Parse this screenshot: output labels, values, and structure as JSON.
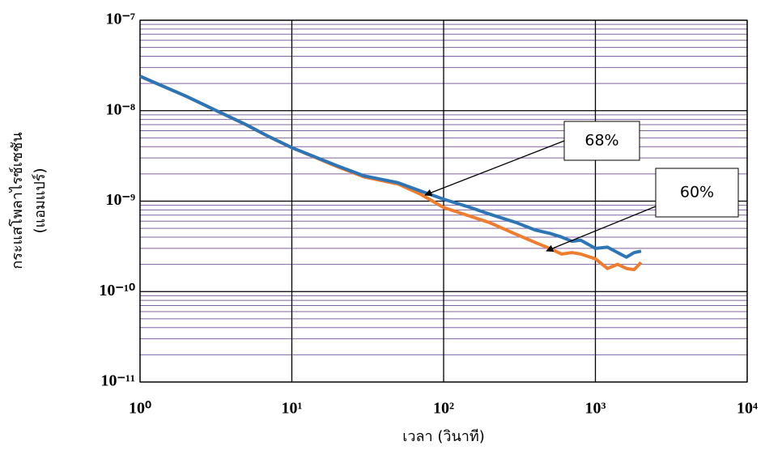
{
  "chart_data": {
    "type": "line",
    "x_label": "เวลา (วินาที)",
    "y_label": [
      "กระแสโพลาไรซ์เซชัน",
      "(แอมแปร์)"
    ],
    "xscale": "log",
    "yscale": "log",
    "grid": true,
    "xlim": [
      1,
      10000
    ],
    "ylim": [
      1e-11,
      1e-07
    ],
    "xticks": [
      {
        "value": 1,
        "label": "10⁰"
      },
      {
        "value": 10,
        "label": "10¹"
      },
      {
        "value": 100,
        "label": "10²"
      },
      {
        "value": 1000,
        "label": "10³"
      },
      {
        "value": 10000,
        "label": "10⁴"
      }
    ],
    "yticks": [
      {
        "value": 1e-11,
        "label": "10⁻¹¹"
      },
      {
        "value": 1e-10,
        "label": "10⁻¹⁰"
      },
      {
        "value": 1e-09,
        "label": "10⁻⁹"
      },
      {
        "value": 1e-08,
        "label": "10⁻⁸"
      },
      {
        "value": 1e-07,
        "label": "10⁻⁷"
      }
    ],
    "x": [
      1,
      2,
      3,
      5,
      7,
      10,
      20,
      30,
      50,
      70,
      100,
      150,
      200,
      300,
      400,
      500,
      600,
      700,
      800,
      1000,
      1200,
      1400,
      1600,
      1800,
      2000
    ],
    "series": [
      {
        "color": "#ed7d31",
        "values": [
          2.4e-08,
          1.45e-08,
          1.05e-08,
          7e-09,
          5.2e-09,
          3.9e-09,
          2.4e-09,
          1.85e-09,
          1.55e-09,
          1.2e-09,
          8.5e-10,
          6.8e-10,
          5.8e-10,
          4.3e-10,
          3.5e-10,
          3e-10,
          2.6e-10,
          2.7e-10,
          2.6e-10,
          2.3e-10,
          1.8e-10,
          2e-10,
          1.8e-10,
          1.75e-10,
          2.1e-10
        ]
      },
      {
        "color": "#2e75b6",
        "values": [
          2.4e-08,
          1.45e-08,
          1.05e-08,
          7e-09,
          5.2e-09,
          3.9e-09,
          2.45e-09,
          1.9e-09,
          1.6e-09,
          1.3e-09,
          1.05e-09,
          8.5e-10,
          7.2e-10,
          5.8e-10,
          4.8e-10,
          4.4e-10,
          4e-10,
          3.6e-10,
          3.7e-10,
          3e-10,
          3.1e-10,
          2.7e-10,
          2.4e-10,
          2.7e-10,
          2.8e-10
        ]
      }
    ],
    "annotations": [
      "68%",
      "60%"
    ]
  }
}
